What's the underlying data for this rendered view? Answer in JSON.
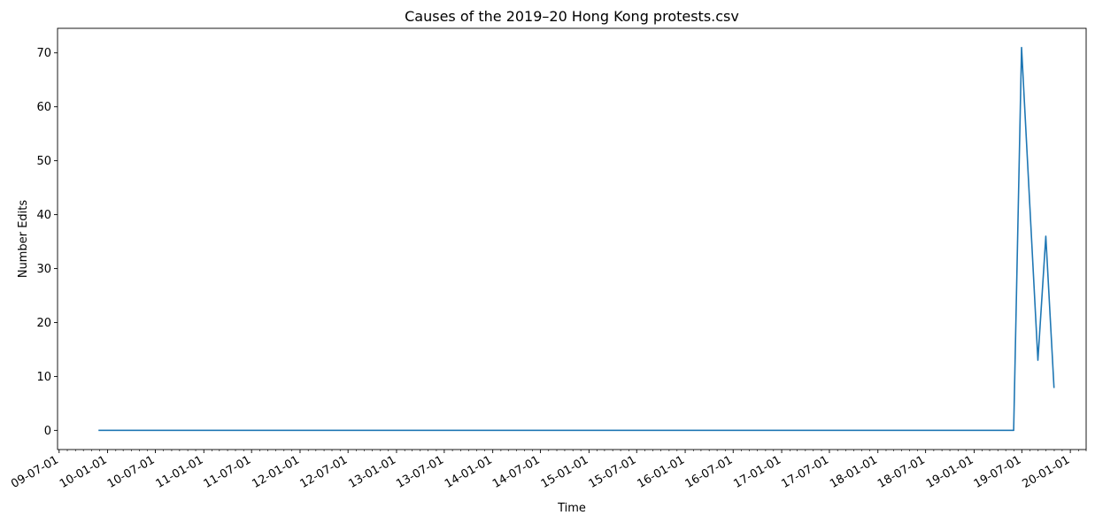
{
  "chart_data": {
    "type": "line",
    "title": "Causes of the 2019–20 Hong Kong protests.csv",
    "xlabel": "Time",
    "ylabel": "Number Edits",
    "xlim": [
      "2009-06-25",
      "2020-03-01"
    ],
    "ylim": [
      -3.55,
      74.55
    ],
    "x_ticks": [
      {
        "date": "2009-07-01",
        "label": "09-07-01"
      },
      {
        "date": "2010-01-01",
        "label": "10-01-01"
      },
      {
        "date": "2010-07-01",
        "label": "10-07-01"
      },
      {
        "date": "2011-01-01",
        "label": "11-01-01"
      },
      {
        "date": "2011-07-01",
        "label": "11-07-01"
      },
      {
        "date": "2012-01-01",
        "label": "12-01-01"
      },
      {
        "date": "2012-07-01",
        "label": "12-07-01"
      },
      {
        "date": "2013-01-01",
        "label": "13-01-01"
      },
      {
        "date": "2013-07-01",
        "label": "13-07-01"
      },
      {
        "date": "2014-01-01",
        "label": "14-01-01"
      },
      {
        "date": "2014-07-01",
        "label": "14-07-01"
      },
      {
        "date": "2015-01-01",
        "label": "15-01-01"
      },
      {
        "date": "2015-07-01",
        "label": "15-07-01"
      },
      {
        "date": "2016-01-01",
        "label": "16-01-01"
      },
      {
        "date": "2016-07-01",
        "label": "16-07-01"
      },
      {
        "date": "2017-01-01",
        "label": "17-01-01"
      },
      {
        "date": "2017-07-01",
        "label": "17-07-01"
      },
      {
        "date": "2018-01-01",
        "label": "18-01-01"
      },
      {
        "date": "2018-07-01",
        "label": "18-07-01"
      },
      {
        "date": "2019-01-01",
        "label": "19-01-01"
      },
      {
        "date": "2019-07-01",
        "label": "19-07-01"
      },
      {
        "date": "2020-01-01",
        "label": "20-01-01"
      }
    ],
    "y_ticks": [
      0,
      10,
      20,
      30,
      40,
      50,
      60,
      70
    ],
    "grid": false,
    "series": [
      {
        "color": "#1f77b4",
        "points": [
          {
            "x": "2009-11-30",
            "y": 0
          },
          {
            "x": "2019-05-31",
            "y": 0
          },
          {
            "x": "2019-06-30",
            "y": 71
          },
          {
            "x": "2019-07-31",
            "y": 42
          },
          {
            "x": "2019-08-31",
            "y": 13
          },
          {
            "x": "2019-09-30",
            "y": 36
          },
          {
            "x": "2019-10-31",
            "y": 8
          }
        ]
      }
    ]
  }
}
